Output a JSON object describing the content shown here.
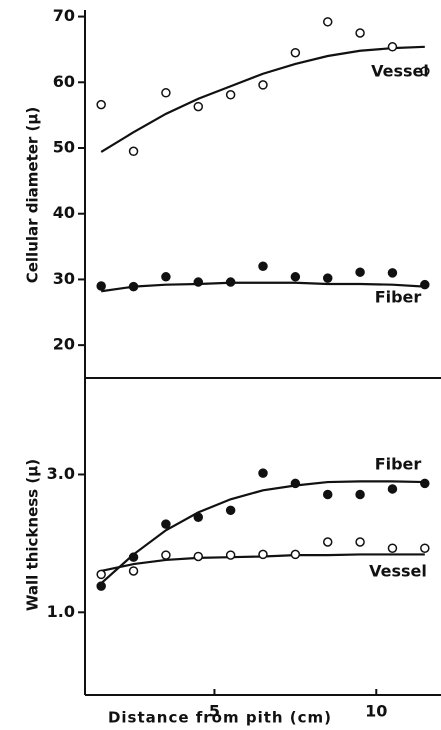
{
  "chart_data": [
    {
      "type": "scatter",
      "ylabel": "Cellular diameter (μ)",
      "xlim": [
        1,
        12
      ],
      "ylim": [
        15,
        71
      ],
      "yticks": [
        20,
        30,
        40,
        50,
        60,
        70
      ],
      "x": [
        1.5,
        2.5,
        3.5,
        4.5,
        5.5,
        6.5,
        7.5,
        8.5,
        9.5,
        10.5,
        11.5
      ],
      "series": [
        {
          "name": "Vessel",
          "color": "#111111",
          "marker": "open",
          "values": [
            56.6,
            49.5,
            58.4,
            56.3,
            58.1,
            59.6,
            64.5,
            69.2,
            67.5,
            65.4,
            61.7
          ],
          "fit": [
            49.4,
            52.4,
            55.2,
            57.5,
            59.4,
            61.3,
            62.8,
            64.0,
            64.8,
            65.2,
            65.4
          ]
        },
        {
          "name": "Fiber",
          "color": "#111111",
          "marker": "filled",
          "values": [
            29.0,
            28.9,
            30.4,
            29.6,
            29.6,
            32.0,
            30.4,
            30.2,
            31.1,
            31.0,
            29.2
          ],
          "fit": [
            28.2,
            28.9,
            29.2,
            29.3,
            29.5,
            29.5,
            29.5,
            29.3,
            29.3,
            29.2,
            28.9
          ]
        }
      ]
    },
    {
      "type": "scatter",
      "ylabel": "Wall thickness (μ)",
      "xlabel": "Distance from pith (cm)",
      "xlim": [
        1,
        12
      ],
      "ylim": [
        -0.2,
        4.4
      ],
      "xticks": [
        5,
        10
      ],
      "yticks": [
        {
          "value": 1,
          "label": "1.0"
        },
        {
          "value": 3,
          "label": "3.0"
        }
      ],
      "x": [
        1.5,
        2.5,
        3.5,
        4.5,
        5.5,
        6.5,
        7.5,
        8.5,
        9.5,
        10.5,
        11.5
      ],
      "series": [
        {
          "name": "Fiber",
          "color": "#111111",
          "marker": "filled",
          "values": [
            1.38,
            1.8,
            2.28,
            2.38,
            2.48,
            3.02,
            2.87,
            2.71,
            2.71,
            2.79,
            2.87
          ],
          "fit": [
            1.42,
            1.84,
            2.19,
            2.45,
            2.64,
            2.77,
            2.84,
            2.89,
            2.9,
            2.9,
            2.89
          ]
        },
        {
          "name": "Vessel",
          "color": "#111111",
          "marker": "open",
          "values": [
            1.55,
            1.6,
            1.83,
            1.81,
            1.83,
            1.84,
            1.84,
            2.02,
            2.02,
            1.93,
            1.93
          ],
          "fit": [
            1.6,
            1.7,
            1.76,
            1.79,
            1.8,
            1.81,
            1.83,
            1.83,
            1.84,
            1.84,
            1.84
          ]
        }
      ]
    }
  ]
}
